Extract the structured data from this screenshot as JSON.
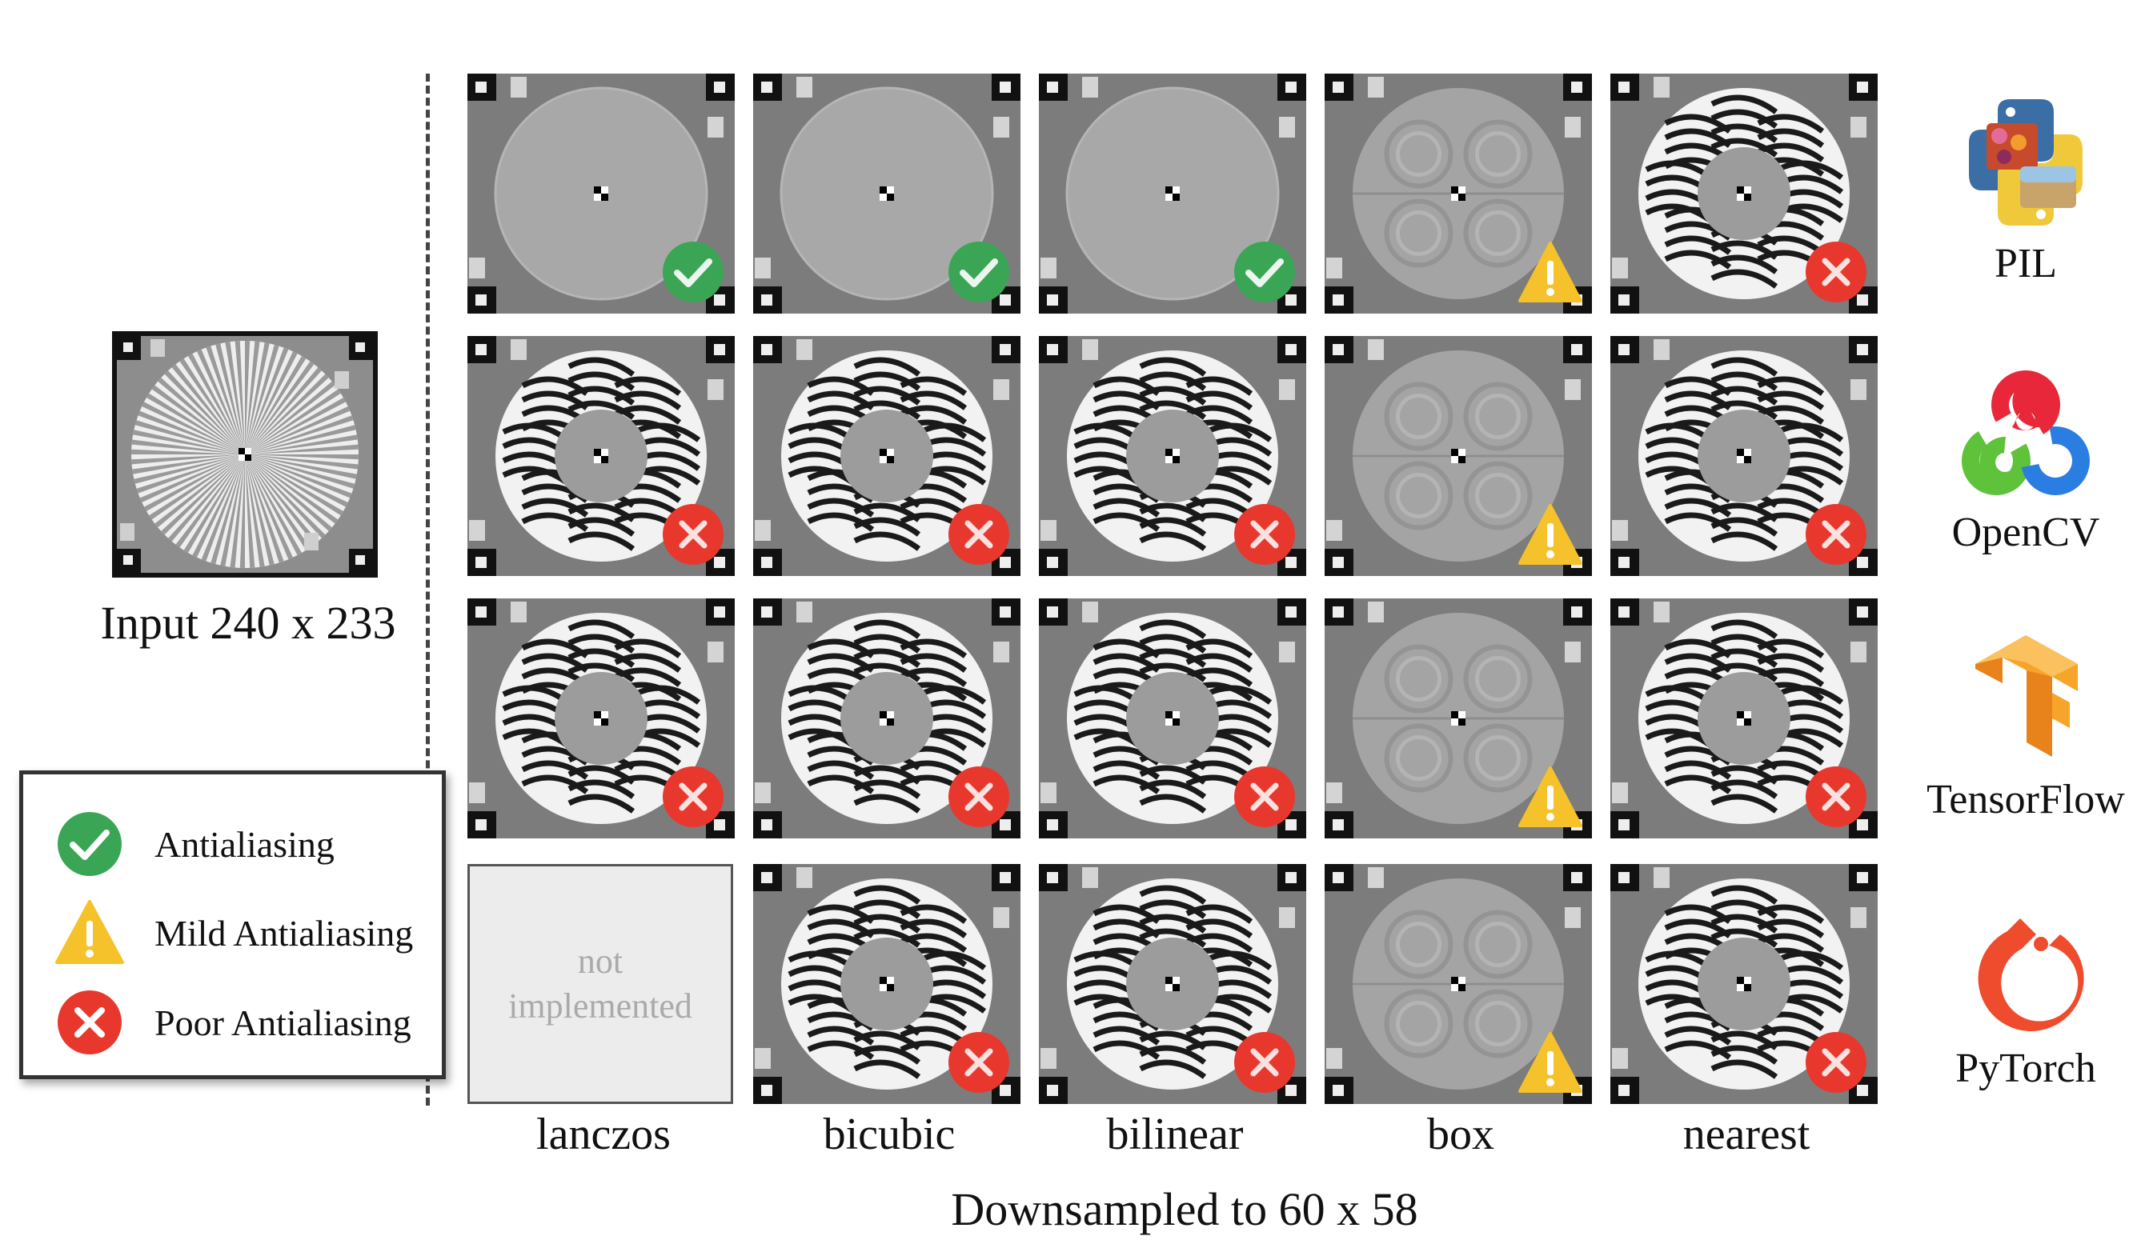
{
  "input_caption": "Input 240 x 233",
  "x_caption": "Downsampled to 60 x 58",
  "columns": [
    "lanczos",
    "bicubic",
    "bilinear",
    "box",
    "nearest"
  ],
  "not_implemented": {
    "line1": "not",
    "line2": "implemented"
  },
  "libraries": [
    {
      "name": "PIL",
      "icon": "pil-logo-icon"
    },
    {
      "name": "OpenCV",
      "icon": "opencv-logo-icon"
    },
    {
      "name": "TensorFlow",
      "icon": "tensorflow-logo-icon"
    },
    {
      "name": "PyTorch",
      "icon": "pytorch-logo-icon"
    }
  ],
  "legend": [
    {
      "label": "Antialiasing",
      "status": "good"
    },
    {
      "label": "Mild Antialiasing",
      "status": "mild"
    },
    {
      "label": "Poor Antialiasing",
      "status": "poor"
    }
  ],
  "grid": [
    [
      "good",
      "good",
      "good",
      "mild",
      "poor"
    ],
    [
      "poor",
      "poor",
      "poor",
      "mild",
      "poor"
    ],
    [
      "poor",
      "poor",
      "poor",
      "mild",
      "poor"
    ],
    [
      "not_implemented",
      "poor",
      "poor",
      "mild",
      "poor"
    ]
  ],
  "colors": {
    "good": "#3aa655",
    "mild": "#f5c22b",
    "poor": "#e8382e",
    "tile_bg": "#8a8a8a"
  }
}
